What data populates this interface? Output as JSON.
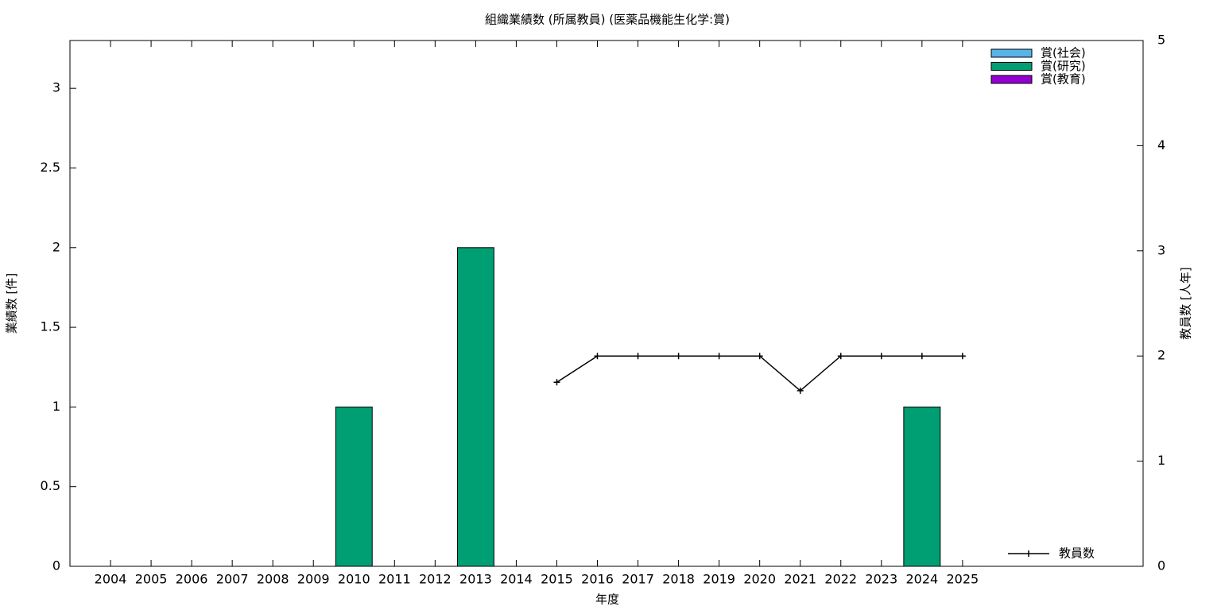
{
  "chart_data": {
    "type": "bar",
    "title": "組織業績数 (所属教員) (医薬品機能生化学:賞)",
    "xlabel": "年度",
    "ylabel": "業績数 [件]",
    "y2label": "教員数 [人年]",
    "x": [
      2004,
      2005,
      2006,
      2007,
      2008,
      2009,
      2010,
      2011,
      2012,
      2013,
      2014,
      2015,
      2016,
      2017,
      2018,
      2019,
      2020,
      2021,
      2022,
      2023,
      2024,
      2025
    ],
    "xlim": [
      2003,
      2029.45
    ],
    "xticks": [
      2004,
      2005,
      2006,
      2007,
      2008,
      2009,
      2010,
      2011,
      2012,
      2013,
      2014,
      2015,
      2016,
      2017,
      2018,
      2019,
      2020,
      2021,
      2022,
      2023,
      2024,
      2025
    ],
    "ylim": [
      0,
      3.3
    ],
    "yticks": [
      0,
      0.5,
      1,
      1.5,
      2,
      2.5,
      3
    ],
    "y2lim": [
      0,
      5
    ],
    "y2ticks": [
      0,
      1,
      2,
      3,
      4,
      5
    ],
    "stacked": true,
    "legend": "top-right",
    "series": [
      {
        "name": "賞(社会)",
        "type": "bar",
        "color": "#56b4e9",
        "values": [
          0,
          0,
          0,
          0,
          0,
          0,
          0,
          0,
          0,
          0,
          0,
          0,
          0,
          0,
          0,
          0,
          0,
          0,
          0,
          0,
          0,
          0
        ]
      },
      {
        "name": "賞(研究)",
        "type": "bar",
        "color": "#009e73",
        "values": [
          0,
          0,
          0,
          0,
          0,
          0,
          1,
          0,
          0,
          2,
          0,
          0,
          0,
          0,
          0,
          0,
          0,
          0,
          0,
          0,
          1,
          0
        ]
      },
      {
        "name": "賞(教育)",
        "type": "bar",
        "color": "#9400d3",
        "values": [
          0,
          0,
          0,
          0,
          0,
          0,
          0,
          0,
          0,
          0,
          0,
          0,
          0,
          0,
          0,
          0,
          0,
          0,
          0,
          0,
          0,
          0
        ]
      },
      {
        "name": "教員数",
        "type": "line",
        "axis": "y2",
        "color": "#000000",
        "values": [
          null,
          null,
          null,
          null,
          null,
          null,
          null,
          null,
          null,
          null,
          null,
          1.75,
          2,
          2,
          2,
          2,
          2,
          1.67,
          2,
          2,
          2,
          2
        ]
      }
    ]
  }
}
